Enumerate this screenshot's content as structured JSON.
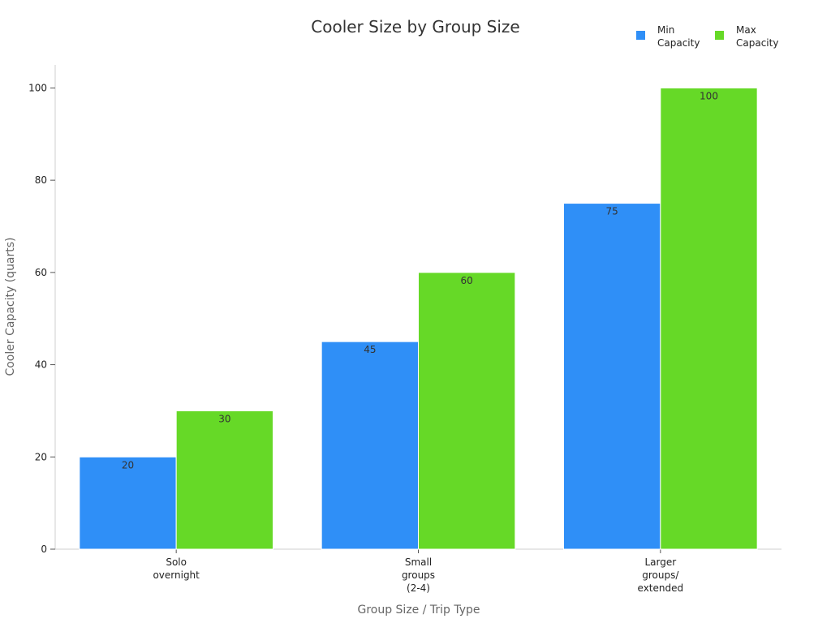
{
  "chart_data": {
    "type": "bar",
    "title": "Cooler Size by Group Size",
    "xlabel": "Group Size / Trip Type",
    "ylabel": "Cooler Capacity (quarts)",
    "categories": [
      [
        "Solo",
        "overnight"
      ],
      [
        "Small",
        "groups",
        "(2-4)"
      ],
      [
        "Larger",
        "groups/",
        "extended"
      ]
    ],
    "series": [
      {
        "name": [
          "Min",
          "Capacity"
        ],
        "color": "#2f8ff7",
        "values": [
          20,
          45,
          75
        ]
      },
      {
        "name": [
          "Max",
          "Capacity"
        ],
        "color": "#66d927",
        "values": [
          30,
          60,
          100
        ]
      }
    ],
    "ylim": [
      0,
      105
    ],
    "yticks": [
      0,
      20,
      40,
      60,
      80,
      100
    ],
    "grid": false,
    "legend_position": "top-right",
    "data_labels": true
  }
}
